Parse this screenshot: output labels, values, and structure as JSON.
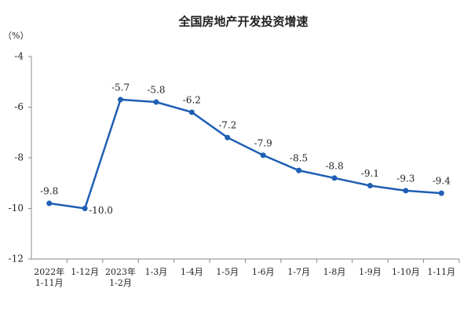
{
  "chart_data": {
    "type": "line",
    "title": "全国房地产开发投资增速",
    "y_label": "（%）",
    "categories": [
      "2022年\n1-11月",
      "1-12月",
      "2023年\n1-2月",
      "1-3月",
      "1-4月",
      "1-5月",
      "1-6月",
      "1-7月",
      "1-8月",
      "1-9月",
      "1-10月",
      "1-11月"
    ],
    "series": [
      {
        "name": "全国房地产开发投资增速",
        "color": "#1f5fb4",
        "values": [
          -9.8,
          -10.0,
          -5.7,
          -5.8,
          -6.2,
          -7.2,
          -7.9,
          -8.5,
          -8.8,
          -9.1,
          -9.3,
          -9.4
        ],
        "value_labels": [
          "-9.8",
          "-10.0",
          "-5.7",
          "-5.8",
          "-6.2",
          "-7.2",
          "-7.9",
          "-8.5",
          "-8.8",
          "-9.1",
          "-9.3",
          "-9.4"
        ]
      }
    ],
    "ylim": [
      -12,
      -4
    ],
    "yticks": [
      -4,
      -6,
      -8,
      -10,
      -12
    ],
    "grid": false,
    "legend": false
  }
}
